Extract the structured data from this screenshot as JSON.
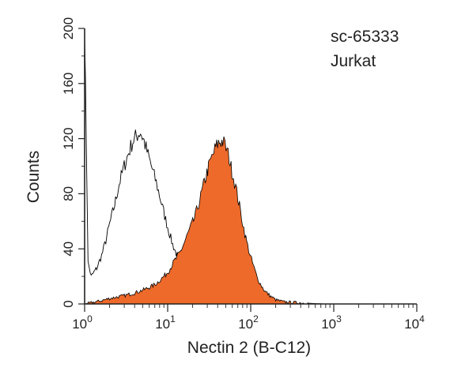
{
  "chart_data": {
    "type": "area",
    "title": "",
    "xlabel": "Nectin 2 (B-C12)",
    "ylabel": "Counts",
    "xscale": "log",
    "xlim": [
      1,
      10000
    ],
    "ylim": [
      0,
      200
    ],
    "grid": false,
    "x_ticks": [
      {
        "value": 1,
        "base": "10",
        "exp": "0"
      },
      {
        "value": 10,
        "base": "10",
        "exp": "1"
      },
      {
        "value": 100,
        "base": "10",
        "exp": "2"
      },
      {
        "value": 1000,
        "base": "10",
        "exp": "3"
      },
      {
        "value": 10000,
        "base": "10",
        "exp": "4"
      }
    ],
    "y_ticks": [
      "0",
      "40",
      "80",
      "120",
      "160",
      "200"
    ],
    "annotations": [
      "sc-65333",
      "Jurkat"
    ],
    "colors": {
      "filled": "#ee6a2a",
      "outline": "#000000",
      "axis": "#222222"
    },
    "series": [
      {
        "style": "outline",
        "x": [
          1.0,
          1.1,
          1.2,
          1.4,
          1.6,
          1.8,
          2.0,
          2.3,
          2.6,
          3.0,
          3.4,
          3.8,
          4.2,
          4.7,
          5.2,
          5.8,
          6.5,
          7.3,
          8.2,
          9.2,
          10.3,
          11.5,
          13.0,
          14.6,
          16.5,
          18.7,
          21.0,
          24.0,
          28.0,
          33.0,
          40.0,
          48.0,
          58.0,
          72.0,
          90.0,
          120.0,
          160.0
        ],
        "values": [
          200,
          30,
          20,
          26,
          35,
          46,
          58,
          72,
          87,
          100,
          110,
          118,
          122,
          125,
          118,
          108,
          98,
          88,
          76,
          64,
          53,
          43,
          35,
          28,
          22,
          17,
          13,
          10,
          7,
          5,
          3,
          2,
          1.5,
          1,
          0.5,
          0.3,
          0
        ]
      },
      {
        "style": "filled",
        "x": [
          1.0,
          1.5,
          2.0,
          3.0,
          4.0,
          5.0,
          6.0,
          7.0,
          8.0,
          9.0,
          10.0,
          11.0,
          12.0,
          13.0,
          14.0,
          15.0,
          16.0,
          17.0,
          19.0,
          21.0,
          23.0,
          25.0,
          27.0,
          29.0,
          31.0,
          33.0,
          35.0,
          37.0,
          40.0,
          43.0,
          46.0,
          49.0,
          52.0,
          55.0,
          58.0,
          62.0,
          66.0,
          70.0,
          75.0,
          80.0,
          85.0,
          92.0,
          100.0,
          110.0,
          120.0,
          135.0,
          150.0,
          170.0,
          200.0,
          250.0,
          350.0,
          500.0,
          800.0
        ],
        "values": [
          0,
          2,
          4,
          6,
          8,
          10,
          12,
          14,
          17,
          20,
          23,
          27,
          31,
          34,
          37,
          41,
          45,
          49,
          56,
          62,
          70,
          78,
          86,
          93,
          99,
          104,
          108,
          112,
          116,
          118,
          118,
          115,
          111,
          106,
          99,
          92,
          85,
          77,
          68,
          59,
          51,
          42,
          34,
          26,
          19,
          13,
          9,
          6,
          3,
          1.5,
          1,
          0.5,
          0
        ]
      }
    ]
  }
}
